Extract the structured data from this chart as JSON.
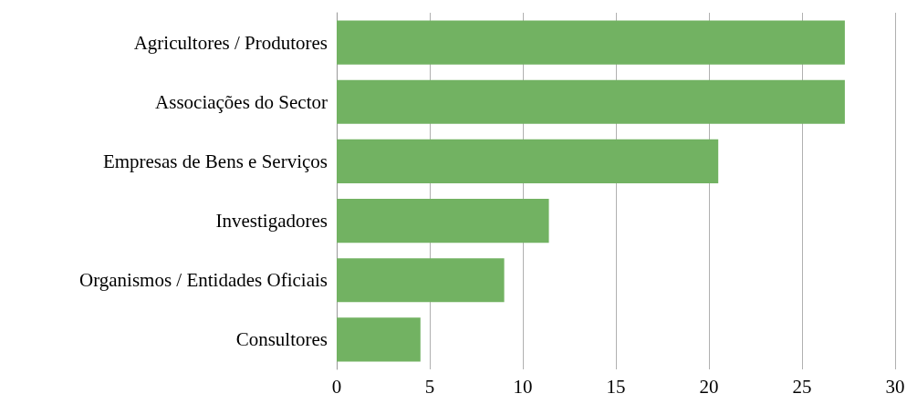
{
  "chart_data": {
    "type": "bar",
    "orientation": "horizontal",
    "categories": [
      "Agricultores / Produtores",
      "Associações do Sector",
      "Empresas de Bens e Serviços",
      "Investigadores",
      "Organismos / Entidades Oficiais",
      "Consultores"
    ],
    "values": [
      27.3,
      27.3,
      20.5,
      11.4,
      9.0,
      4.5
    ],
    "color": "#72b262",
    "xlim": [
      0,
      30
    ],
    "xticks": [
      0,
      5,
      10,
      15,
      20,
      25,
      30
    ],
    "grid": "x"
  }
}
